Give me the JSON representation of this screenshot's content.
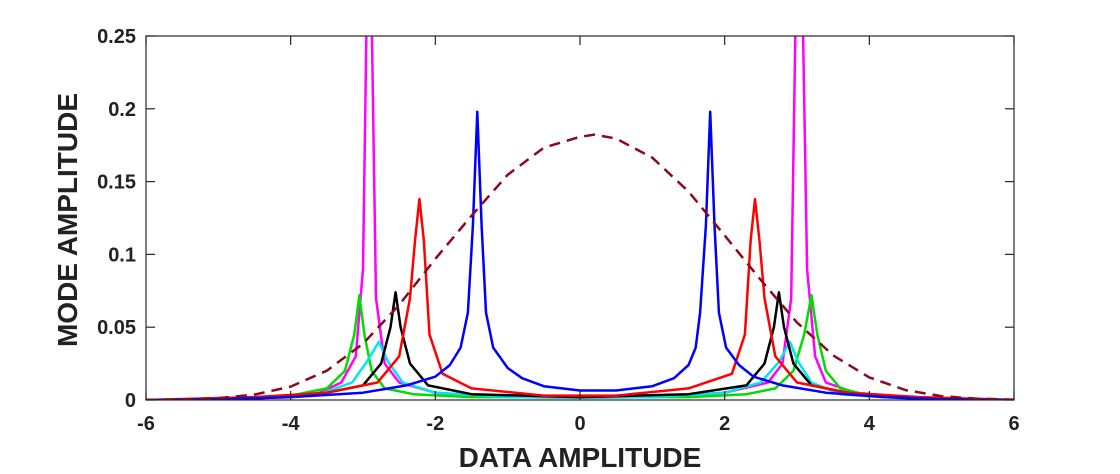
{
  "chart_data": {
    "type": "line",
    "xlabel": "DATA  AMPLITUDE",
    "ylabel": "MODE  AMPLITUDE",
    "xlim": [
      -6,
      6
    ],
    "ylim": [
      0,
      0.25
    ],
    "xticks": [
      "-6",
      "-4",
      "-2",
      "0",
      "2",
      "4",
      "6"
    ],
    "yticks": [
      "0",
      "0.05",
      "0.1",
      "0.15",
      "0.2",
      "0.25"
    ],
    "grid": false,
    "series": [
      {
        "color": "#ff00ff",
        "style": "solid",
        "points": [
          [
            -6,
            0
          ],
          [
            -5,
            0.0005
          ],
          [
            -4,
            0.002
          ],
          [
            -3.6,
            0.005
          ],
          [
            -3.3,
            0.012
          ],
          [
            -3.1,
            0.03
          ],
          [
            -3.0,
            0.09
          ],
          [
            -2.95,
            0.3
          ],
          [
            -2.88,
            0.3
          ],
          [
            -2.82,
            0.07
          ],
          [
            -2.7,
            0.025
          ],
          [
            -2.5,
            0.012
          ],
          [
            -2,
            0.005
          ],
          [
            -1,
            0.002
          ],
          [
            0,
            0.0015
          ],
          [
            1,
            0.002
          ],
          [
            2,
            0.005
          ],
          [
            2.6,
            0.012
          ],
          [
            2.8,
            0.025
          ],
          [
            2.92,
            0.07
          ],
          [
            2.98,
            0.3
          ],
          [
            3.08,
            0.3
          ],
          [
            3.14,
            0.09
          ],
          [
            3.25,
            0.03
          ],
          [
            3.4,
            0.012
          ],
          [
            3.8,
            0.005
          ],
          [
            4.5,
            0.002
          ],
          [
            6,
            0
          ]
        ]
      },
      {
        "color": "#00dd00",
        "style": "solid",
        "points": [
          [
            -6,
            0
          ],
          [
            -5,
            0.0008
          ],
          [
            -4,
            0.003
          ],
          [
            -3.5,
            0.008
          ],
          [
            -3.25,
            0.02
          ],
          [
            -3.12,
            0.045
          ],
          [
            -3.05,
            0.072
          ],
          [
            -2.98,
            0.045
          ],
          [
            -2.88,
            0.02
          ],
          [
            -2.7,
            0.008
          ],
          [
            -2.3,
            0.004
          ],
          [
            -1.5,
            0.002
          ],
          [
            0,
            0.002
          ],
          [
            1.5,
            0.002
          ],
          [
            2.3,
            0.004
          ],
          [
            2.7,
            0.008
          ],
          [
            2.95,
            0.02
          ],
          [
            3.1,
            0.045
          ],
          [
            3.2,
            0.072
          ],
          [
            3.28,
            0.045
          ],
          [
            3.4,
            0.02
          ],
          [
            3.6,
            0.008
          ],
          [
            4,
            0.003
          ],
          [
            5,
            0.0008
          ],
          [
            6,
            0
          ]
        ]
      },
      {
        "color": "#00e5ee",
        "style": "solid",
        "points": [
          [
            -6,
            0
          ],
          [
            -4.5,
            0.001
          ],
          [
            -3.6,
            0.004
          ],
          [
            -3.15,
            0.012
          ],
          [
            -2.95,
            0.026
          ],
          [
            -2.78,
            0.04
          ],
          [
            -2.65,
            0.026
          ],
          [
            -2.45,
            0.012
          ],
          [
            -2,
            0.005
          ],
          [
            -1,
            0.002
          ],
          [
            0,
            0.0015
          ],
          [
            1,
            0.002
          ],
          [
            2,
            0.005
          ],
          [
            2.5,
            0.012
          ],
          [
            2.75,
            0.026
          ],
          [
            2.9,
            0.04
          ],
          [
            3.02,
            0.026
          ],
          [
            3.2,
            0.012
          ],
          [
            3.6,
            0.004
          ],
          [
            4.5,
            0.001
          ],
          [
            6,
            0
          ]
        ]
      },
      {
        "color": "#000000",
        "style": "solid",
        "points": [
          [
            -6,
            0
          ],
          [
            -4.5,
            0.001
          ],
          [
            -3.6,
            0.004
          ],
          [
            -3.0,
            0.01
          ],
          [
            -2.75,
            0.025
          ],
          [
            -2.62,
            0.05
          ],
          [
            -2.55,
            0.074
          ],
          [
            -2.48,
            0.05
          ],
          [
            -2.35,
            0.025
          ],
          [
            -2.1,
            0.01
          ],
          [
            -1.5,
            0.004
          ],
          [
            0,
            0.002
          ],
          [
            1.5,
            0.004
          ],
          [
            2.3,
            0.01
          ],
          [
            2.55,
            0.025
          ],
          [
            2.68,
            0.05
          ],
          [
            2.75,
            0.074
          ],
          [
            2.82,
            0.05
          ],
          [
            2.95,
            0.025
          ],
          [
            3.2,
            0.01
          ],
          [
            3.8,
            0.004
          ],
          [
            4.6,
            0.001
          ],
          [
            6,
            0
          ]
        ]
      },
      {
        "color": "#ff0000",
        "style": "solid",
        "points": [
          [
            -6,
            0
          ],
          [
            -4.5,
            0.002
          ],
          [
            -3.5,
            0.005
          ],
          [
            -2.8,
            0.012
          ],
          [
            -2.5,
            0.03
          ],
          [
            -2.35,
            0.07
          ],
          [
            -2.28,
            0.11
          ],
          [
            -2.22,
            0.138
          ],
          [
            -2.16,
            0.11
          ],
          [
            -2.08,
            0.045
          ],
          [
            -1.9,
            0.018
          ],
          [
            -1.5,
            0.008
          ],
          [
            -0.5,
            0.003
          ],
          [
            0,
            0.003
          ],
          [
            0.5,
            0.003
          ],
          [
            1.5,
            0.008
          ],
          [
            2.1,
            0.018
          ],
          [
            2.28,
            0.045
          ],
          [
            2.36,
            0.11
          ],
          [
            2.42,
            0.138
          ],
          [
            2.48,
            0.11
          ],
          [
            2.55,
            0.07
          ],
          [
            2.7,
            0.03
          ],
          [
            3.0,
            0.012
          ],
          [
            3.7,
            0.005
          ],
          [
            4.7,
            0.002
          ],
          [
            6,
            0
          ]
        ]
      },
      {
        "color": "#0000ff",
        "style": "solid",
        "points": [
          [
            -6,
            0
          ],
          [
            -5,
            0.0005
          ],
          [
            -4,
            0.002
          ],
          [
            -3,
            0.005
          ],
          [
            -2.4,
            0.01
          ],
          [
            -2.0,
            0.016
          ],
          [
            -1.8,
            0.024
          ],
          [
            -1.65,
            0.036
          ],
          [
            -1.55,
            0.06
          ],
          [
            -1.48,
            0.12
          ],
          [
            -1.42,
            0.198
          ],
          [
            -1.36,
            0.12
          ],
          [
            -1.3,
            0.06
          ],
          [
            -1.2,
            0.036
          ],
          [
            -1.0,
            0.022
          ],
          [
            -0.8,
            0.015
          ],
          [
            -0.5,
            0.0095
          ],
          [
            0,
            0.0065
          ],
          [
            0.5,
            0.0065
          ],
          [
            1.0,
            0.0095
          ],
          [
            1.3,
            0.015
          ],
          [
            1.5,
            0.024
          ],
          [
            1.6,
            0.036
          ],
          [
            1.66,
            0.06
          ],
          [
            1.74,
            0.12
          ],
          [
            1.8,
            0.198
          ],
          [
            1.86,
            0.12
          ],
          [
            1.92,
            0.06
          ],
          [
            2.02,
            0.036
          ],
          [
            2.2,
            0.024
          ],
          [
            2.4,
            0.016
          ],
          [
            2.8,
            0.01
          ],
          [
            3.4,
            0.005
          ],
          [
            4.2,
            0.002
          ],
          [
            5,
            0.0005
          ],
          [
            6,
            0
          ]
        ]
      },
      {
        "color": "#8b0a1e",
        "style": "dashed",
        "points": [
          [
            -6,
            0.0001
          ],
          [
            -5.5,
            0.0004
          ],
          [
            -5.0,
            0.0013
          ],
          [
            -4.5,
            0.0037
          ],
          [
            -4.0,
            0.0092
          ],
          [
            -3.5,
            0.0201
          ],
          [
            -3.0,
            0.0387
          ],
          [
            -2.5,
            0.0653
          ],
          [
            -2.0,
            0.0969
          ],
          [
            -1.5,
            0.1265
          ],
          [
            -1.0,
            0.1547
          ],
          [
            -0.5,
            0.1733
          ],
          [
            0,
            0.1808
          ],
          [
            0.2,
            0.1823
          ],
          [
            0.5,
            0.1795
          ],
          [
            1.0,
            0.1664
          ],
          [
            1.5,
            0.1432
          ],
          [
            2.0,
            0.113
          ],
          [
            2.5,
            0.0824
          ],
          [
            3.0,
            0.0532
          ],
          [
            3.5,
            0.0306
          ],
          [
            4.0,
            0.0155
          ],
          [
            4.5,
            0.0068
          ],
          [
            5.0,
            0.0026
          ],
          [
            5.5,
            0.0009
          ],
          [
            6,
            0.0003
          ]
        ]
      }
    ]
  }
}
